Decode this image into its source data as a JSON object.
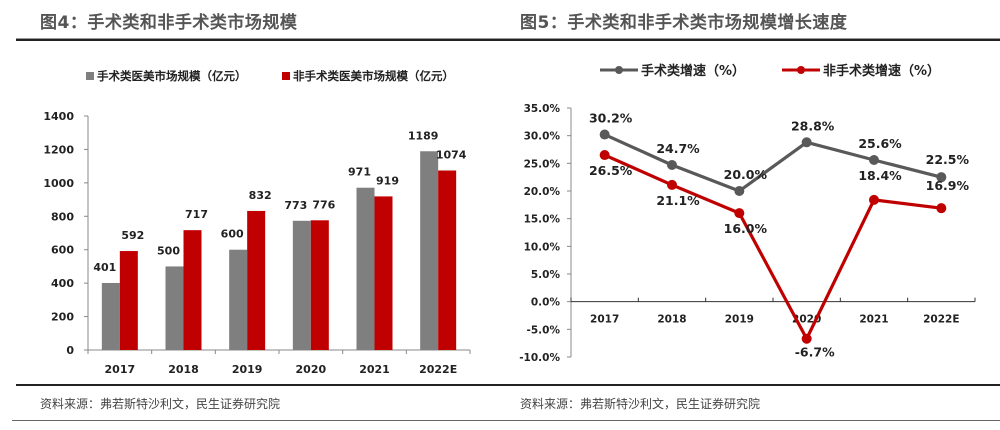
{
  "figures": [
    {
      "title": "图4：手术类和非手术类市场规模",
      "source": "资料来源：弗若斯特沙利文，民生证券研究院"
    },
    {
      "title": "图5：手术类和非手术类市场规模增长速度",
      "source": "资料来源：弗若斯特沙利文，民生证券研究院"
    }
  ],
  "colors": {
    "gray": "#7f7f7f",
    "red": "#c00000",
    "dark_gray": "#595959"
  },
  "chart_data": [
    {
      "type": "bar",
      "title": "图4：手术类和非手术类市场规模",
      "categories": [
        "2017",
        "2018",
        "2019",
        "2020",
        "2021",
        "2022E"
      ],
      "series": [
        {
          "name": "手术类医美市场规模（亿元）",
          "values": [
            401,
            500,
            600,
            773,
            971,
            1189
          ],
          "color": "#7f7f7f"
        },
        {
          "name": "非手术类医美市场规模（亿元）",
          "values": [
            592,
            717,
            832,
            776,
            919,
            1074
          ],
          "color": "#c00000"
        }
      ],
      "yticks": [
        "0",
        "200",
        "400",
        "600",
        "800",
        "1000",
        "1200",
        "1400"
      ],
      "ylim": [
        0,
        1400
      ],
      "xlabel": "",
      "ylabel": "",
      "legend": "top",
      "grid": false,
      "data_labels": true
    },
    {
      "type": "line",
      "title": "图5：手术类和非手术类市场规模增长速度",
      "categories": [
        "2017",
        "2018",
        "2019",
        "2020",
        "2021",
        "2022E"
      ],
      "series": [
        {
          "name": "手术类增速（%）",
          "values": [
            30.2,
            24.7,
            20.0,
            28.8,
            25.6,
            22.5
          ],
          "labels": [
            "30.2%",
            "24.7%",
            "20.0%",
            "28.8%",
            "25.6%",
            "22.5%"
          ],
          "color": "#595959"
        },
        {
          "name": "非手术类增速（%）",
          "values": [
            26.5,
            21.1,
            16.0,
            -6.7,
            18.4,
            16.9
          ],
          "labels": [
            "26.5%",
            "21.1%",
            "16.0%",
            "-6.7%",
            "18.4%",
            "16.9%"
          ],
          "color": "#c00000"
        }
      ],
      "yticks": [
        "-10.0%",
        "-5.0%",
        "0.0%",
        "5.0%",
        "10.0%",
        "15.0%",
        "20.0%",
        "25.0%",
        "30.0%",
        "35.0%"
      ],
      "ylim": [
        -10,
        35
      ],
      "xlabel": "",
      "ylabel": "",
      "legend": "top",
      "grid": false,
      "data_labels": true
    }
  ]
}
